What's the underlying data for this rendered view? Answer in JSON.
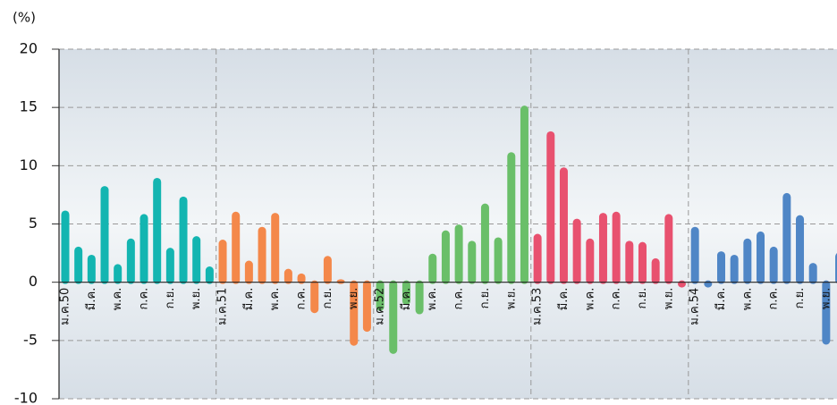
{
  "chart_data": {
    "type": "bar",
    "y_label": "(%)",
    "categories": [
      "ม.ค.50",
      null,
      "มี.ค.",
      null,
      "พ.ค.",
      null,
      "ก.ค.",
      null,
      "ก.ย.",
      null,
      "พ.ย.",
      null,
      "ม.ค.51",
      null,
      "มี.ค.",
      null,
      "พ.ค.",
      null,
      "ก.ค.",
      null,
      "ก.ย.",
      null,
      "พ.ย.",
      null,
      "ม.ค.52",
      null,
      "มี.ค.",
      null,
      "พ.ค.",
      null,
      "ก.ค.",
      null,
      "ก.ย.",
      null,
      "พ.ย.",
      null,
      "ม.ค.53",
      null,
      "มี.ค.",
      null,
      "พ.ค.",
      null,
      "ก.ค.",
      null,
      "ก.ย.",
      null,
      "พ.ย.",
      null,
      "ม.ค.54",
      null,
      "มี.ค.",
      null,
      "พ.ค.",
      null,
      "ก.ค.",
      null,
      "ก.ย.",
      null,
      "พ.ย.",
      null
    ],
    "values": [
      6.0,
      2.9,
      2.2,
      8.1,
      1.4,
      3.6,
      5.7,
      8.8,
      2.8,
      7.2,
      3.8,
      1.2,
      3.5,
      5.9,
      1.7,
      4.6,
      5.8,
      1.0,
      0.6,
      -2.5,
      2.1,
      0.1,
      -5.3,
      -4.1,
      -2.3,
      -6.0,
      -1.8,
      -2.6,
      2.3,
      4.3,
      4.8,
      3.4,
      6.6,
      3.7,
      11.0,
      15.0,
      4.0,
      12.8,
      9.7,
      5.3,
      3.6,
      5.8,
      5.9,
      3.4,
      3.3,
      1.9,
      5.7,
      -0.3,
      4.6,
      -0.3,
      2.5,
      2.2,
      3.6,
      4.2,
      2.9,
      7.5,
      5.6,
      1.5,
      -5.2,
      2.4
    ],
    "colors": [
      "#13b5b1",
      "#13b5b1",
      "#13b5b1",
      "#13b5b1",
      "#13b5b1",
      "#13b5b1",
      "#13b5b1",
      "#13b5b1",
      "#13b5b1",
      "#13b5b1",
      "#13b5b1",
      "#13b5b1",
      "#f4884a",
      "#f4884a",
      "#f4884a",
      "#f4884a",
      "#f4884a",
      "#f4884a",
      "#f4884a",
      "#f4884a",
      "#f4884a",
      "#f4884a",
      "#f4884a",
      "#f4884a",
      "#6abf69",
      "#6abf69",
      "#6abf69",
      "#6abf69",
      "#6abf69",
      "#6abf69",
      "#6abf69",
      "#6abf69",
      "#6abf69",
      "#6abf69",
      "#6abf69",
      "#6abf69",
      "#e8516f",
      "#e8516f",
      "#e8516f",
      "#e8516f",
      "#e8516f",
      "#e8516f",
      "#e8516f",
      "#e8516f",
      "#e8516f",
      "#e8516f",
      "#e8516f",
      "#e8516f",
      "#4f86c6",
      "#4f86c6",
      "#4f86c6",
      "#4f86c6",
      "#4f86c6",
      "#4f86c6",
      "#4f86c6",
      "#4f86c6",
      "#4f86c6",
      "#4f86c6",
      "#4f86c6",
      "#4f86c6"
    ],
    "ylim": [
      -10,
      20
    ],
    "yticks": [
      -10,
      -5,
      0,
      5,
      10,
      15,
      20
    ],
    "grid": true
  }
}
